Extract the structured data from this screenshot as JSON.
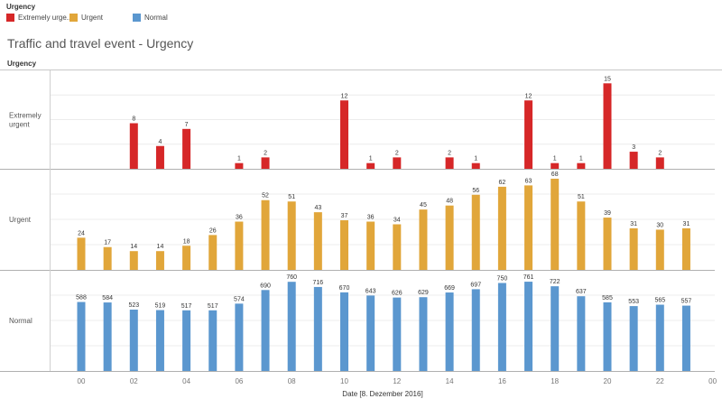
{
  "legend": {
    "title": "Urgency",
    "items": [
      {
        "label": "Extremely urge..",
        "color": "#d62728"
      },
      {
        "label": "Urgent",
        "color": "#e1a63a"
      },
      {
        "label": "Normal",
        "color": "#5b97cf"
      }
    ]
  },
  "chart_data": {
    "type": "bar",
    "title": "Traffic and travel event - Urgency",
    "row_header": "Urgency",
    "xlabel": "Date [8. Dezember 2016]",
    "x_ticks": [
      "00",
      "02",
      "04",
      "06",
      "08",
      "10",
      "12",
      "14",
      "16",
      "18",
      "20",
      "22",
      "00"
    ],
    "hours": [
      0,
      1,
      2,
      3,
      4,
      5,
      6,
      7,
      8,
      9,
      10,
      11,
      12,
      13,
      14,
      15,
      16,
      17,
      18,
      19,
      20,
      21,
      22,
      23
    ],
    "series": [
      {
        "name": "Extremely urgent",
        "row_label": "Extremely urgent",
        "color": "#d62728",
        "ylim": [
          0,
          16
        ],
        "values": [
          null,
          null,
          8,
          4,
          7,
          null,
          1,
          2,
          null,
          null,
          12,
          1,
          2,
          null,
          2,
          1,
          null,
          12,
          1,
          1,
          15,
          3,
          2,
          null
        ]
      },
      {
        "name": "Urgent",
        "row_label": "Urgent",
        "color": "#e1a63a",
        "ylim": [
          0,
          70
        ],
        "values": [
          24,
          17,
          14,
          14,
          18,
          26,
          36,
          52,
          51,
          43,
          37,
          36,
          34,
          45,
          48,
          56,
          62,
          63,
          68,
          51,
          39,
          31,
          30,
          31
        ]
      },
      {
        "name": "Normal",
        "row_label": "Normal",
        "color": "#5b97cf",
        "ylim": [
          0,
          800
        ],
        "values": [
          588,
          584,
          523,
          519,
          517,
          517,
          574,
          690,
          760,
          716,
          670,
          643,
          626,
          629,
          669,
          697,
          750,
          761,
          722,
          637,
          585,
          553,
          565,
          557
        ]
      }
    ]
  }
}
